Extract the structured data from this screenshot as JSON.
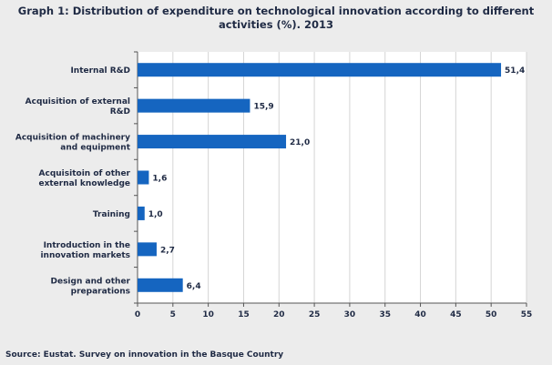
{
  "chart_data": {
    "type": "bar",
    "orientation": "horizontal",
    "title_line1": "Graph 1: Distribution of expenditure on technological innovation according to different",
    "title_line2": "activities (%). 2013",
    "categories": [
      [
        "Internal R&D"
      ],
      [
        "Acquisition of external",
        "R&D"
      ],
      [
        "Acquisition of machinery",
        "and equipment"
      ],
      [
        "Acquisitoin of other",
        "external knowledge"
      ],
      [
        "Training"
      ],
      [
        "Introduction in the",
        "innovation markets"
      ],
      [
        "Design and other",
        "preparations"
      ]
    ],
    "values": [
      51.4,
      15.9,
      21.0,
      1.6,
      1.0,
      2.7,
      6.4
    ],
    "value_labels": [
      "51,4",
      "15,9",
      "21,0",
      "1,6",
      "1,0",
      "2,7",
      "6,4"
    ],
    "xlim": [
      0,
      55
    ],
    "x_ticks": [
      0,
      5,
      10,
      15,
      20,
      25,
      30,
      35,
      40,
      45,
      50,
      55
    ],
    "grid": "vertical",
    "bar_color": "#1565c0",
    "source": "Source: Eustat. Survey on innovation in the Basque Country"
  }
}
